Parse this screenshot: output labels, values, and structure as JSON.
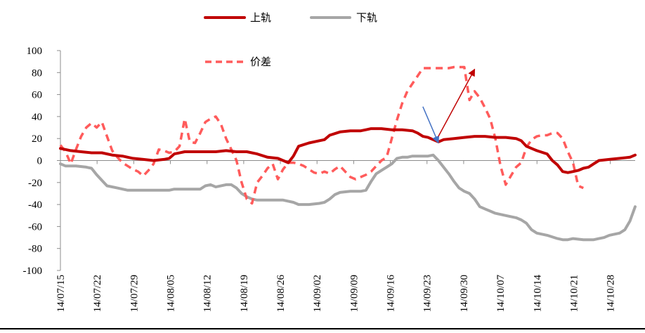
{
  "chart_data": {
    "type": "line",
    "ylim": [
      -100,
      100
    ],
    "y_ticks": [
      100,
      80,
      60,
      40,
      20,
      0,
      -20,
      -40,
      -60,
      -80,
      -100
    ],
    "x_tick_labels": [
      "14/07/15",
      "14/07/22",
      "14/07/29",
      "14/08/05",
      "14/08/12",
      "14/08/19",
      "14/08/26",
      "14/09/02",
      "14/09/09",
      "14/09/16",
      "14/09/23",
      "14/09/30",
      "14/10/07",
      "14/10/14",
      "14/10/21",
      "14/10/28"
    ],
    "legend": [
      {
        "name": "上轨",
        "color": "#c00000",
        "style": "solid"
      },
      {
        "name": "下轨",
        "color": "#a6a6a6",
        "style": "solid"
      },
      {
        "name": "价差",
        "color": "#ff5b5b",
        "style": "dashed"
      }
    ],
    "series": [
      {
        "name": "上轨",
        "color": "#c00000",
        "points": [
          [
            0,
            11
          ],
          [
            2,
            9
          ],
          [
            4,
            8
          ],
          [
            6,
            7
          ],
          [
            8,
            7
          ],
          [
            10,
            5
          ],
          [
            12,
            4
          ],
          [
            14,
            2
          ],
          [
            16,
            1
          ],
          [
            18,
            0
          ],
          [
            20,
            1
          ],
          [
            21,
            2
          ],
          [
            22,
            6
          ],
          [
            24,
            8
          ],
          [
            26,
            8
          ],
          [
            28,
            8
          ],
          [
            30,
            8
          ],
          [
            32,
            9
          ],
          [
            34,
            8
          ],
          [
            36,
            8
          ],
          [
            38,
            6
          ],
          [
            40,
            3
          ],
          [
            42,
            2
          ],
          [
            43,
            0
          ],
          [
            44,
            -2
          ],
          [
            45,
            4
          ],
          [
            46,
            13
          ],
          [
            48,
            16
          ],
          [
            50,
            18
          ],
          [
            51,
            19
          ],
          [
            52,
            23
          ],
          [
            54,
            26
          ],
          [
            56,
            27
          ],
          [
            58,
            27
          ],
          [
            59,
            28
          ],
          [
            60,
            29
          ],
          [
            62,
            29
          ],
          [
            64,
            28
          ],
          [
            66,
            28
          ],
          [
            68,
            27
          ],
          [
            69,
            25
          ],
          [
            70,
            22
          ],
          [
            71,
            21
          ],
          [
            72,
            19
          ],
          [
            73,
            17
          ],
          [
            74,
            19
          ],
          [
            76,
            20
          ],
          [
            78,
            21
          ],
          [
            80,
            22
          ],
          [
            82,
            22
          ],
          [
            84,
            21
          ],
          [
            86,
            21
          ],
          [
            88,
            20
          ],
          [
            89,
            18
          ],
          [
            90,
            13
          ],
          [
            92,
            9
          ],
          [
            94,
            6
          ],
          [
            95,
            0
          ],
          [
            96,
            -4
          ],
          [
            97,
            -10
          ],
          [
            98,
            -11
          ],
          [
            99,
            -10
          ],
          [
            100,
            -9
          ],
          [
            101,
            -7
          ],
          [
            102,
            -6
          ],
          [
            103,
            -3
          ],
          [
            104,
            0
          ],
          [
            106,
            1
          ],
          [
            108,
            2
          ],
          [
            110,
            3
          ],
          [
            111,
            5
          ]
        ]
      },
      {
        "name": "下轨",
        "color": "#a6a6a6",
        "points": [
          [
            0,
            -3
          ],
          [
            1,
            -5
          ],
          [
            3,
            -5
          ],
          [
            5,
            -6
          ],
          [
            6,
            -7
          ],
          [
            7,
            -13
          ],
          [
            8,
            -18
          ],
          [
            9,
            -23
          ],
          [
            11,
            -25
          ],
          [
            13,
            -27
          ],
          [
            15,
            -27
          ],
          [
            17,
            -27
          ],
          [
            19,
            -27
          ],
          [
            21,
            -27
          ],
          [
            22,
            -26
          ],
          [
            24,
            -26
          ],
          [
            26,
            -26
          ],
          [
            27,
            -26
          ],
          [
            28,
            -23
          ],
          [
            29,
            -22
          ],
          [
            30,
            -24
          ],
          [
            32,
            -22
          ],
          [
            33,
            -22
          ],
          [
            34,
            -25
          ],
          [
            35,
            -30
          ],
          [
            36,
            -33
          ],
          [
            37,
            -35
          ],
          [
            38,
            -36
          ],
          [
            40,
            -36
          ],
          [
            42,
            -36
          ],
          [
            43,
            -36
          ],
          [
            44,
            -37
          ],
          [
            45,
            -38
          ],
          [
            46,
            -40
          ],
          [
            48,
            -40
          ],
          [
            50,
            -39
          ],
          [
            51,
            -38
          ],
          [
            52,
            -35
          ],
          [
            53,
            -31
          ],
          [
            54,
            -29
          ],
          [
            56,
            -28
          ],
          [
            58,
            -28
          ],
          [
            59,
            -27
          ],
          [
            60,
            -19
          ],
          [
            61,
            -12
          ],
          [
            62,
            -9
          ],
          [
            63,
            -6
          ],
          [
            64,
            -3
          ],
          [
            65,
            2
          ],
          [
            66,
            3
          ],
          [
            67,
            3
          ],
          [
            68,
            4
          ],
          [
            69,
            4
          ],
          [
            70,
            4
          ],
          [
            71,
            4
          ],
          [
            72,
            5
          ],
          [
            73,
            0
          ],
          [
            74,
            -6
          ],
          [
            75,
            -12
          ],
          [
            76,
            -19
          ],
          [
            77,
            -25
          ],
          [
            78,
            -28
          ],
          [
            79,
            -30
          ],
          [
            80,
            -35
          ],
          [
            81,
            -42
          ],
          [
            82,
            -44
          ],
          [
            83,
            -46
          ],
          [
            84,
            -48
          ],
          [
            86,
            -50
          ],
          [
            88,
            -52
          ],
          [
            89,
            -54
          ],
          [
            90,
            -57
          ],
          [
            91,
            -63
          ],
          [
            92,
            -66
          ],
          [
            94,
            -68
          ],
          [
            96,
            -71
          ],
          [
            97,
            -72
          ],
          [
            98,
            -72
          ],
          [
            99,
            -71
          ],
          [
            101,
            -72
          ],
          [
            103,
            -72
          ],
          [
            104,
            -71
          ],
          [
            105,
            -70
          ],
          [
            106,
            -68
          ],
          [
            108,
            -66
          ],
          [
            109,
            -63
          ],
          [
            110,
            -55
          ],
          [
            111,
            -42
          ]
        ]
      },
      {
        "name": "价差",
        "color": "#ff5b5b",
        "points": [
          [
            0,
            14
          ],
          [
            1,
            8
          ],
          [
            2,
            -3
          ],
          [
            3,
            10
          ],
          [
            4,
            22
          ],
          [
            5,
            30
          ],
          [
            6,
            34
          ],
          [
            7,
            30
          ],
          [
            8,
            35
          ],
          [
            9,
            22
          ],
          [
            10,
            9
          ],
          [
            11,
            3
          ],
          [
            12,
            -2
          ],
          [
            13,
            -5
          ],
          [
            14,
            -8
          ],
          [
            15,
            -10
          ],
          [
            16,
            -14
          ],
          [
            17,
            -9
          ],
          [
            18,
            -3
          ],
          [
            19,
            10
          ],
          [
            20,
            9
          ],
          [
            21,
            7
          ],
          [
            22,
            8
          ],
          [
            23,
            13
          ],
          [
            24,
            38
          ],
          [
            25,
            17
          ],
          [
            26,
            16
          ],
          [
            27,
            25
          ],
          [
            28,
            35
          ],
          [
            29,
            38
          ],
          [
            30,
            40
          ],
          [
            31,
            33
          ],
          [
            32,
            20
          ],
          [
            33,
            10
          ],
          [
            34,
            0
          ],
          [
            35,
            -20
          ],
          [
            36,
            -35
          ],
          [
            37,
            -39
          ],
          [
            38,
            -20
          ],
          [
            39,
            -14
          ],
          [
            40,
            -7
          ],
          [
            41,
            -3
          ],
          [
            42,
            -17
          ],
          [
            43,
            -8
          ],
          [
            44,
            -2
          ],
          [
            45,
            -2
          ],
          [
            46,
            -3
          ],
          [
            47,
            -5
          ],
          [
            48,
            -8
          ],
          [
            49,
            -11
          ],
          [
            50,
            -12
          ],
          [
            51,
            -10
          ],
          [
            52,
            -12
          ],
          [
            53,
            -8
          ],
          [
            54,
            -5
          ],
          [
            55,
            -10
          ],
          [
            56,
            -15
          ],
          [
            57,
            -17
          ],
          [
            58,
            -15
          ],
          [
            59,
            -13
          ],
          [
            60,
            -10
          ],
          [
            61,
            -5
          ],
          [
            62,
            0
          ],
          [
            63,
            3
          ],
          [
            64,
            20
          ],
          [
            65,
            37
          ],
          [
            66,
            52
          ],
          [
            67,
            63
          ],
          [
            68,
            70
          ],
          [
            69,
            77
          ],
          [
            70,
            84
          ],
          [
            71,
            84
          ],
          [
            72,
            84
          ],
          [
            73,
            84
          ],
          [
            74,
            84
          ],
          [
            75,
            84
          ],
          [
            76,
            85
          ],
          [
            77,
            85
          ],
          [
            78,
            85
          ],
          [
            79,
            55
          ],
          [
            80,
            63
          ],
          [
            81,
            57
          ],
          [
            82,
            48
          ],
          [
            83,
            38
          ],
          [
            84,
            20
          ],
          [
            85,
            -5
          ],
          [
            86,
            -22
          ],
          [
            87,
            -14
          ],
          [
            88,
            -6
          ],
          [
            89,
            -2
          ],
          [
            90,
            12
          ],
          [
            91,
            19
          ],
          [
            92,
            22
          ],
          [
            93,
            23
          ],
          [
            94,
            23
          ],
          [
            95,
            25
          ],
          [
            96,
            25
          ],
          [
            97,
            20
          ],
          [
            98,
            8
          ],
          [
            99,
            -2
          ],
          [
            100,
            -23
          ],
          [
            101,
            -25
          ]
        ]
      }
    ],
    "annotations": [
      {
        "type": "arrow",
        "color": "#4472c4",
        "from": [
          70,
          49
        ],
        "to": [
          73,
          16
        ]
      },
      {
        "type": "arrow",
        "color": "#c00000",
        "from": [
          73,
          22
        ],
        "to": [
          80,
          83
        ]
      }
    ]
  }
}
